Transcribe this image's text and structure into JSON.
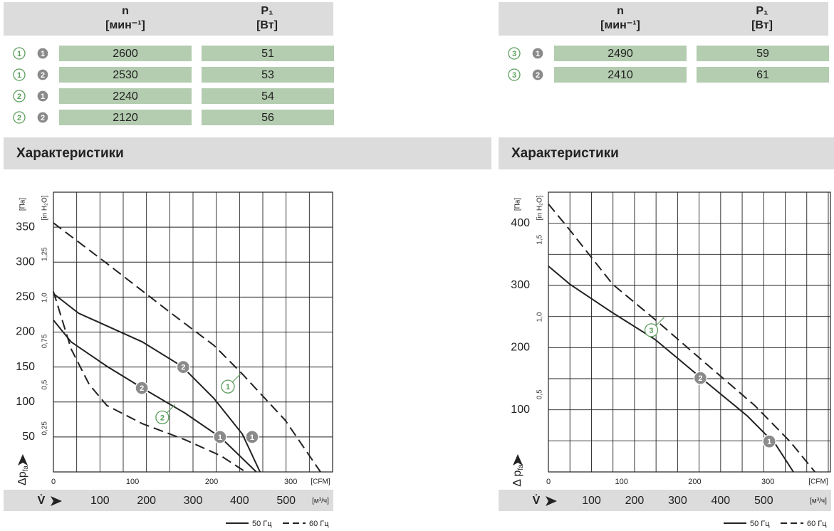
{
  "tables": [
    {
      "header": {
        "n": {
          "symbol": "n",
          "unit": "[мин⁻¹]"
        },
        "p": {
          "symbol": "P₁",
          "unit": "[Вт]"
        }
      },
      "rows": [
        [
          "1",
          "1",
          2600,
          51
        ],
        [
          "1",
          "2",
          2530,
          53
        ],
        [
          "2",
          "1",
          2240,
          54
        ],
        [
          "2",
          "2",
          2120,
          56
        ]
      ]
    },
    {
      "header": {
        "n": {
          "symbol": "n",
          "unit": "[мин⁻¹]"
        },
        "p": {
          "symbol": "P₁",
          "unit": "[Вт]"
        }
      },
      "rows": [
        [
          "3",
          "1",
          2490,
          59
        ],
        [
          "3",
          "2",
          2410,
          61
        ]
      ]
    }
  ],
  "section_titles": [
    "Характеристики",
    "Характеристики"
  ],
  "chart_data": [
    {
      "type": "line",
      "ylabel": {
        "text": "Δp",
        "sub": "fa"
      },
      "yunit": "[Па]",
      "ylim": [
        0,
        400
      ],
      "yticks": [
        50,
        100,
        150,
        200,
        250,
        300,
        350
      ],
      "ygrid": [
        50,
        100,
        150,
        200,
        250,
        300,
        350
      ],
      "y2unit": "[in H₂O]",
      "y2lim": [
        0,
        1.606
      ],
      "y2ticks": [
        {
          "value": 0.25,
          "label": "0,25"
        },
        {
          "value": 0.5,
          "label": "0,5"
        },
        {
          "value": 0.75,
          "label": "0,75"
        },
        {
          "value": 1.0,
          "label": "1,0"
        },
        {
          "value": 1.25,
          "label": "1,25"
        }
      ],
      "xlabel": "V̇",
      "xunit": "[м³/ч]",
      "xlim": [
        0,
        600
      ],
      "xticks": [
        100,
        200,
        300,
        400,
        500
      ],
      "xgrid": [
        50,
        100,
        150,
        200,
        250,
        300,
        350,
        400,
        450,
        500,
        550
      ],
      "x2unit": "[CFM]",
      "x2lim": [
        0,
        353
      ],
      "x2ticks": [
        0,
        100,
        200,
        300
      ],
      "series": [
        {
          "style": "dashed",
          "color": "#222222",
          "x": [
            0,
            115,
            253,
            345,
            406,
            498,
            574
          ],
          "values": [
            356,
            298,
            227,
            181,
            140,
            74,
            0
          ]
        },
        {
          "style": "solid",
          "color": "#222222",
          "x": [
            0,
            54,
            191,
            276,
            345,
            406,
            444
          ],
          "values": [
            255,
            227,
            186,
            151,
            105,
            54,
            0
          ]
        },
        {
          "style": "solid",
          "color": "#222222",
          "x": [
            0,
            38,
            115,
            191,
            283,
            360,
            436
          ],
          "values": [
            217,
            186,
            151,
            120,
            84,
            49,
            0
          ]
        },
        {
          "style": "dashed",
          "color": "#222222",
          "x": [
            0,
            38,
            77,
            115,
            191,
            283,
            360,
            413
          ],
          "values": [
            258,
            176,
            125,
            95,
            69,
            46,
            23,
            0
          ]
        }
      ],
      "annotations": [
        {
          "text": "2",
          "x": 279,
          "y": 150,
          "style": "filled"
        },
        {
          "text": "2",
          "x": 190,
          "y": 120,
          "style": "filled"
        },
        {
          "text": "1",
          "x": 358,
          "y": 50,
          "style": "filled"
        },
        {
          "text": "1",
          "x": 427,
          "y": 50,
          "style": "filled"
        },
        {
          "text": "1",
          "x": 375,
          "y": 122,
          "style": "outline"
        },
        {
          "text": "2",
          "x": 234,
          "y": 78,
          "style": "outline"
        }
      ],
      "legend": [
        {
          "text": "50 Гц",
          "style": "solid"
        },
        {
          "text": "60 Гц",
          "style": "dashed"
        }
      ]
    },
    {
      "type": "line",
      "ylabel": {
        "text": "Δ p",
        "sub": "fa"
      },
      "yunit": "[Па]",
      "ylim": [
        0,
        450
      ],
      "yticks": [
        100,
        200,
        300,
        400
      ],
      "ygrid": [
        50,
        100,
        150,
        200,
        250,
        300,
        350,
        400
      ],
      "y2unit": "[in H₂O]",
      "y2lim": [
        0,
        1.807
      ],
      "y2ticks": [
        {
          "value": 0.5,
          "label": "0,5"
        },
        {
          "value": 1.0,
          "label": "1,0"
        },
        {
          "value": 1.5,
          "label": "1,5"
        }
      ],
      "xlabel": "V̇",
      "xunit": "[м³/ч]",
      "xlim": [
        0,
        655
      ],
      "xticks": [
        100,
        200,
        300,
        400,
        500
      ],
      "xgrid": [
        50,
        100,
        150,
        200,
        250,
        300,
        350,
        400,
        450,
        500,
        550,
        600,
        650
      ],
      "x2unit": "[CFM]",
      "x2lim": [
        0,
        385.5
      ],
      "x2ticks": [
        0,
        100,
        200,
        300
      ],
      "series": [
        {
          "style": "dashed",
          "color": "#222222",
          "x": [
            0,
            50,
            149,
            248,
            363,
            479,
            561,
            619
          ],
          "values": [
            431,
            389,
            302,
            245,
            176,
            107,
            49,
            0
          ]
        },
        {
          "style": "solid",
          "color": "#222222",
          "x": [
            0,
            50,
            149,
            248,
            355,
            462,
            528,
            569
          ],
          "values": [
            331,
            302,
            256,
            213,
            151,
            90,
            44,
            0
          ]
        }
      ],
      "annotations": [
        {
          "text": "3",
          "x": 239,
          "y": 228,
          "style": "outline"
        },
        {
          "text": "2",
          "x": 353,
          "y": 151,
          "style": "filled"
        },
        {
          "text": "1",
          "x": 513,
          "y": 49,
          "style": "filled"
        }
      ],
      "legend": [
        {
          "text": "50 Гц",
          "style": "solid"
        },
        {
          "text": "60 Гц",
          "style": "dashed"
        }
      ]
    }
  ]
}
